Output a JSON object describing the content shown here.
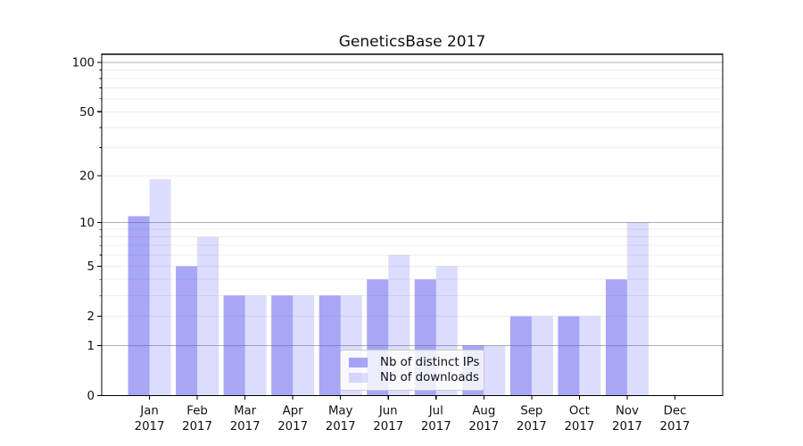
{
  "chart_data": {
    "type": "bar",
    "title": "GeneticsBase 2017",
    "categories": [
      "Jan",
      "Feb",
      "Mar",
      "Apr",
      "May",
      "Jun",
      "Jul",
      "Aug",
      "Sep",
      "Oct",
      "Nov",
      "Dec"
    ],
    "year_label": "2017",
    "series": [
      {
        "name": "Nb of distinct IPs",
        "color": "rgba(80,80,238,0.5)",
        "values": [
          11,
          5,
          3,
          3,
          3,
          4,
          4,
          1,
          2,
          2,
          4,
          0
        ]
      },
      {
        "name": "Nb of downloads",
        "color": "rgba(80,80,238,0.2)",
        "values": [
          19,
          8,
          3,
          3,
          3,
          6,
          5,
          1,
          2,
          2,
          10,
          0
        ]
      }
    ],
    "xlabel": "",
    "ylabel": "",
    "yscale": "log1p",
    "ylim": [
      0,
      112
    ],
    "yticks_labeled": [
      0,
      1,
      2,
      5,
      10,
      20,
      50,
      100
    ],
    "yticks_major": [
      1,
      10,
      100
    ],
    "yticks_minor": [
      2,
      3,
      4,
      5,
      6,
      7,
      8,
      9,
      20,
      30,
      40,
      50,
      60,
      70,
      80,
      90
    ],
    "grid": "horizontal major+minor",
    "legend_position": "lower center"
  },
  "colors": {
    "bar_base": "#5050ee",
    "grid_major": "#b0b0b0",
    "grid_minor": "#ececec",
    "spine": "#000000",
    "text": "#111111",
    "legend_border": "#cccccc"
  }
}
